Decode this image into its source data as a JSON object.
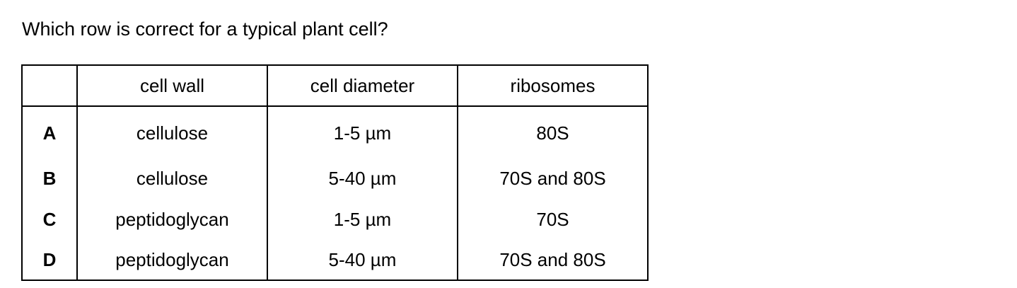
{
  "question": "Which row is correct for a typical plant cell?",
  "table": {
    "headers": [
      "",
      "cell wall",
      "cell diameter",
      "ribosomes"
    ],
    "rows": [
      {
        "letter": "A",
        "cell_wall": "cellulose",
        "cell_diameter": "1-5 µm",
        "ribosomes": "80S"
      },
      {
        "letter": "B",
        "cell_wall": "cellulose",
        "cell_diameter": "5-40 µm",
        "ribosomes": "70S and 80S"
      },
      {
        "letter": "C",
        "cell_wall": "peptidoglycan",
        "cell_diameter": "1-5 µm",
        "ribosomes": "70S"
      },
      {
        "letter": "D",
        "cell_wall": "peptidoglycan",
        "cell_diameter": "5-40 µm",
        "ribosomes": "70S and 80S"
      }
    ]
  }
}
